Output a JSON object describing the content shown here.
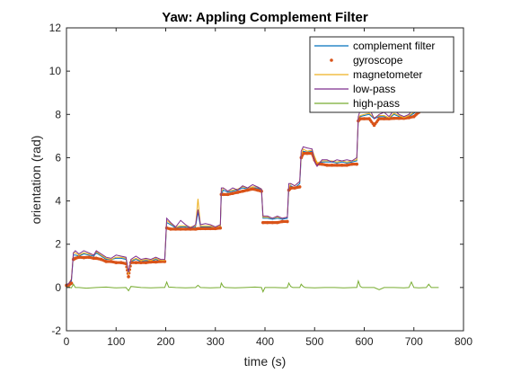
{
  "chart_data": {
    "type": "line",
    "title": "Yaw: Appling Complement Filter",
    "xlabel": "time (s)",
    "ylabel": "orientation (rad)",
    "xlim": [
      0,
      800
    ],
    "ylim": [
      -2,
      12
    ],
    "xticks": [
      0,
      100,
      200,
      300,
      400,
      500,
      600,
      700,
      800
    ],
    "yticks": [
      -2,
      0,
      2,
      4,
      6,
      8,
      10,
      12
    ],
    "grid": false,
    "legend_position": "top-right",
    "series": [
      {
        "name": "complement filter",
        "style": "line",
        "color": "#0072BD",
        "x": [
          0,
          5,
          10,
          14,
          18,
          25,
          35,
          45,
          55,
          60,
          70,
          80,
          90,
          100,
          110,
          120,
          125,
          130,
          140,
          150,
          160,
          170,
          180,
          190,
          198,
          202,
          210,
          220,
          230,
          240,
          250,
          260,
          265,
          270,
          280,
          290,
          300,
          310,
          312,
          316,
          325,
          335,
          345,
          355,
          365,
          375,
          385,
          393,
          396,
          405,
          415,
          425,
          435,
          445,
          448,
          452,
          460,
          470,
          473,
          477,
          485,
          495,
          500,
          505,
          515,
          525,
          535,
          545,
          555,
          565,
          575,
          585,
          588,
          592,
          600,
          610,
          620,
          630,
          640,
          650,
          660,
          670,
          680,
          690,
          700,
          710
        ],
        "y": [
          0.1,
          0.15,
          0.3,
          1.5,
          1.5,
          1.45,
          1.55,
          1.5,
          1.45,
          1.6,
          1.45,
          1.3,
          1.3,
          1.35,
          1.35,
          1.3,
          0.6,
          1.2,
          1.3,
          1.2,
          1.25,
          1.2,
          1.3,
          1.2,
          1.2,
          3.0,
          2.9,
          2.75,
          2.8,
          2.8,
          2.75,
          2.8,
          3.5,
          2.8,
          2.8,
          2.8,
          2.75,
          2.8,
          4.3,
          4.5,
          4.4,
          4.45,
          4.5,
          4.6,
          4.55,
          4.6,
          4.6,
          4.5,
          3.2,
          3.2,
          3.15,
          3.2,
          3.15,
          3.2,
          4.5,
          4.7,
          4.6,
          4.8,
          6.0,
          6.3,
          6.25,
          6.3,
          6.0,
          5.7,
          5.8,
          5.8,
          5.8,
          5.75,
          5.8,
          5.75,
          5.8,
          5.85,
          7.8,
          7.9,
          7.95,
          8.0,
          7.8,
          7.9,
          7.9,
          7.8,
          8.0,
          7.9,
          7.8,
          7.9,
          8.05,
          8.2
        ]
      },
      {
        "name": "gyroscope",
        "style": "dots",
        "color": "#D95319",
        "x": [
          0,
          5,
          10,
          14,
          18,
          25,
          35,
          45,
          55,
          60,
          70,
          80,
          90,
          100,
          110,
          120,
          125,
          130,
          140,
          150,
          160,
          170,
          180,
          190,
          198,
          202,
          210,
          220,
          230,
          240,
          250,
          260,
          265,
          270,
          280,
          290,
          300,
          310,
          312,
          316,
          325,
          335,
          345,
          355,
          365,
          375,
          385,
          393,
          396,
          405,
          415,
          425,
          435,
          445,
          448,
          452,
          460,
          470,
          473,
          477,
          485,
          495,
          500,
          505,
          515,
          525,
          535,
          545,
          555,
          565,
          575,
          585,
          588,
          592,
          600,
          610,
          620,
          630,
          640,
          650,
          660,
          670,
          680,
          690,
          700,
          710
        ],
        "y": [
          0.1,
          0.12,
          0.2,
          1.3,
          1.35,
          1.4,
          1.38,
          1.4,
          1.35,
          1.35,
          1.3,
          1.2,
          1.2,
          1.15,
          1.15,
          1.1,
          0.5,
          1.15,
          1.15,
          1.15,
          1.15,
          1.18,
          1.18,
          1.2,
          1.2,
          2.75,
          2.7,
          2.7,
          2.7,
          2.7,
          2.7,
          2.7,
          2.72,
          2.72,
          2.72,
          2.72,
          2.72,
          2.75,
          4.3,
          4.3,
          4.3,
          4.35,
          4.4,
          4.45,
          4.5,
          4.55,
          4.5,
          4.45,
          3.0,
          3.0,
          3.0,
          3.0,
          3.05,
          3.05,
          4.5,
          4.6,
          4.6,
          4.65,
          6.0,
          6.2,
          6.2,
          6.2,
          5.9,
          5.7,
          5.7,
          5.65,
          5.65,
          5.65,
          5.65,
          5.65,
          5.7,
          5.7,
          7.7,
          7.8,
          7.8,
          7.8,
          7.5,
          7.8,
          7.8,
          7.8,
          7.82,
          7.82,
          7.82,
          7.85,
          7.9,
          8.1
        ]
      },
      {
        "name": "magnetometer",
        "style": "line",
        "color": "#EDB120",
        "x": [
          0,
          5,
          10,
          14,
          18,
          25,
          35,
          45,
          55,
          60,
          70,
          80,
          90,
          100,
          110,
          120,
          125,
          130,
          140,
          150,
          160,
          170,
          180,
          190,
          198,
          202,
          210,
          220,
          230,
          240,
          250,
          260,
          265,
          270,
          280,
          290,
          300,
          310,
          312,
          316,
          325,
          335,
          345,
          355,
          365,
          375,
          385,
          393,
          396,
          405,
          415,
          425,
          435,
          445,
          448,
          452,
          460,
          470,
          473,
          477,
          485,
          495,
          500,
          505,
          515,
          525,
          535,
          545,
          555,
          565,
          575,
          585,
          588,
          592,
          600,
          610,
          620,
          630,
          640,
          650,
          660,
          670,
          680,
          690,
          700,
          710
        ],
        "y": [
          0.1,
          0.2,
          0.4,
          1.6,
          1.6,
          1.5,
          1.6,
          1.55,
          1.5,
          1.65,
          1.5,
          1.35,
          1.3,
          1.4,
          1.4,
          1.35,
          0.6,
          1.25,
          1.35,
          1.25,
          1.3,
          1.25,
          1.35,
          1.25,
          1.25,
          3.1,
          2.95,
          2.8,
          2.85,
          2.85,
          2.8,
          2.85,
          4.1,
          2.85,
          2.85,
          2.85,
          2.8,
          2.85,
          4.4,
          4.6,
          4.45,
          4.5,
          4.55,
          4.65,
          4.6,
          4.65,
          4.65,
          4.55,
          3.25,
          3.25,
          3.2,
          3.25,
          3.2,
          3.25,
          4.6,
          4.8,
          4.7,
          4.9,
          6.1,
          6.4,
          6.3,
          6.35,
          6.05,
          5.75,
          5.85,
          5.85,
          5.85,
          5.8,
          5.85,
          5.8,
          5.85,
          5.9,
          7.85,
          7.95,
          8.0,
          8.05,
          7.85,
          7.95,
          7.95,
          7.85,
          8.05,
          7.95,
          7.85,
          7.95,
          8.1,
          8.25
        ]
      },
      {
        "name": "low-pass",
        "style": "line",
        "color": "#7E2F8E",
        "x": [
          0,
          5,
          10,
          14,
          18,
          25,
          35,
          45,
          55,
          60,
          70,
          80,
          90,
          100,
          110,
          120,
          125,
          130,
          140,
          150,
          160,
          170,
          180,
          190,
          198,
          202,
          210,
          220,
          230,
          240,
          250,
          260,
          265,
          270,
          280,
          290,
          300,
          310,
          312,
          316,
          325,
          335,
          345,
          355,
          365,
          375,
          385,
          393,
          396,
          405,
          415,
          425,
          435,
          445,
          448,
          452,
          460,
          470,
          473,
          477,
          485,
          495,
          500,
          505,
          515,
          525,
          535,
          545,
          555,
          565,
          575,
          585,
          588,
          592,
          600,
          610,
          620,
          630,
          640,
          650,
          660,
          670,
          680,
          690,
          700,
          710
        ],
        "y": [
          0.1,
          0.2,
          0.35,
          1.6,
          1.7,
          1.55,
          1.7,
          1.6,
          1.5,
          1.7,
          1.55,
          1.4,
          1.35,
          1.5,
          1.45,
          1.4,
          0.7,
          1.3,
          1.45,
          1.3,
          1.35,
          1.3,
          1.4,
          1.3,
          1.3,
          3.2,
          3.0,
          2.8,
          3.1,
          2.9,
          2.75,
          2.9,
          3.6,
          2.9,
          2.95,
          2.9,
          2.8,
          2.9,
          4.6,
          4.6,
          4.45,
          4.6,
          4.5,
          4.7,
          4.6,
          4.75,
          4.65,
          4.55,
          3.3,
          3.3,
          3.2,
          3.3,
          3.2,
          3.25,
          4.8,
          4.8,
          4.7,
          4.9,
          6.3,
          6.5,
          6.45,
          6.4,
          5.8,
          5.6,
          5.9,
          5.9,
          5.8,
          5.9,
          5.85,
          5.9,
          5.85,
          6.0,
          7.9,
          8.2,
          8.1,
          8.3,
          7.8,
          8.0,
          8.1,
          7.9,
          8.2,
          8.0,
          7.9,
          8.0,
          8.3,
          8.4
        ]
      },
      {
        "name": "high-pass",
        "style": "line",
        "color": "#77AC30",
        "x": [
          0,
          5,
          10,
          14,
          18,
          25,
          40,
          60,
          80,
          100,
          120,
          125,
          130,
          150,
          170,
          190,
          198,
          202,
          206,
          220,
          240,
          260,
          265,
          270,
          290,
          310,
          312,
          316,
          320,
          340,
          360,
          380,
          393,
          396,
          400,
          420,
          440,
          445,
          448,
          452,
          456,
          470,
          473,
          477,
          481,
          500,
          520,
          540,
          560,
          580,
          585,
          588,
          592,
          596,
          620,
          630,
          640,
          660,
          680,
          690,
          695,
          700,
          710,
          725,
          730,
          735,
          750
        ],
        "y": [
          0.0,
          0.02,
          -0.02,
          0.15,
          0.0,
          0.0,
          -0.03,
          0.0,
          0.02,
          -0.02,
          0.0,
          -0.15,
          0.05,
          0.0,
          -0.02,
          0.0,
          0.0,
          0.25,
          0.02,
          0.0,
          -0.02,
          0.0,
          0.1,
          0.0,
          -0.02,
          0.0,
          0.2,
          0.05,
          0.0,
          -0.02,
          0.0,
          0.02,
          0.0,
          -0.2,
          0.0,
          0.0,
          -0.02,
          0.0,
          0.2,
          0.05,
          0.0,
          0.0,
          0.15,
          0.05,
          0.0,
          -0.02,
          0.0,
          0.0,
          -0.02,
          0.0,
          0.0,
          0.3,
          0.05,
          0.0,
          0.0,
          -0.1,
          0.0,
          0.0,
          -0.02,
          0.0,
          0.25,
          0.0,
          -0.02,
          0.0,
          0.15,
          0.0,
          0.0
        ]
      }
    ]
  },
  "colors": {
    "axes": "#262626",
    "background": "#ffffff",
    "legend_border": "#262626"
  }
}
